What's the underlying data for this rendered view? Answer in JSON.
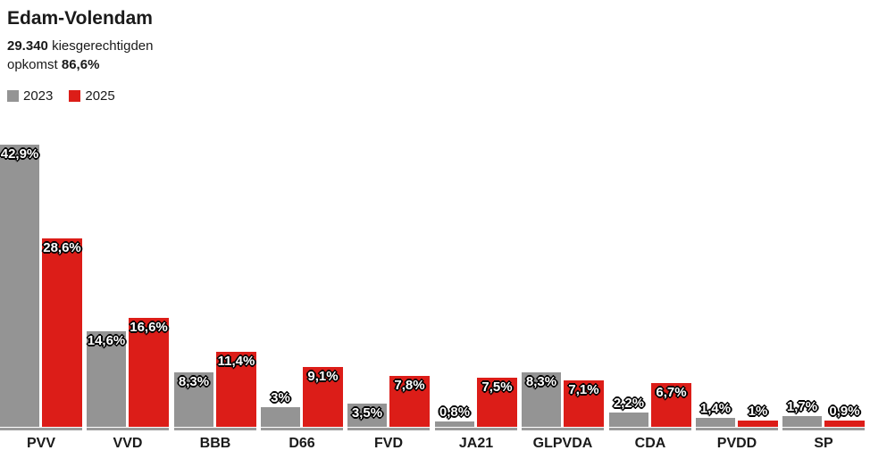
{
  "header": {
    "title": "Edam-Volendam",
    "electorate_value": "29.340",
    "electorate_label": "kiesgerechtigden",
    "turnout_label": "opkomst",
    "turnout_value": "86,6%"
  },
  "legend": [
    {
      "label": "2023",
      "color": "#949494"
    },
    {
      "label": "2025",
      "color": "#dc1d18"
    }
  ],
  "chart_data": {
    "type": "bar",
    "title": "Edam-Volendam",
    "categories": [
      "PVV",
      "VVD",
      "BBB",
      "D66",
      "FVD",
      "JA21",
      "GLPVDA",
      "CDA",
      "PVDD",
      "SP"
    ],
    "series": [
      {
        "name": "2023",
        "color": "#949494",
        "values": [
          42.9,
          14.6,
          8.3,
          3,
          3.5,
          0.8,
          8.3,
          2.2,
          1.4,
          1.7
        ],
        "labels": [
          "42,9%",
          "14,6%",
          "8,3%",
          "3%",
          "3,5%",
          "0,8%",
          "8,3%",
          "2,2%",
          "1,4%",
          "1,7%"
        ]
      },
      {
        "name": "2025",
        "color": "#dc1d18",
        "values": [
          28.6,
          16.6,
          11.4,
          9.1,
          7.8,
          7.5,
          7.1,
          6.7,
          1,
          0.9
        ],
        "labels": [
          "28,6%",
          "16,6%",
          "11,4%",
          "9,1%",
          "7,8%",
          "7,5%",
          "7,1%",
          "6,7%",
          "1%",
          "0,9%"
        ]
      }
    ],
    "ylim": [
      0,
      45
    ],
    "value_suffix": "%",
    "grid": false,
    "legend_position": "top-left"
  }
}
